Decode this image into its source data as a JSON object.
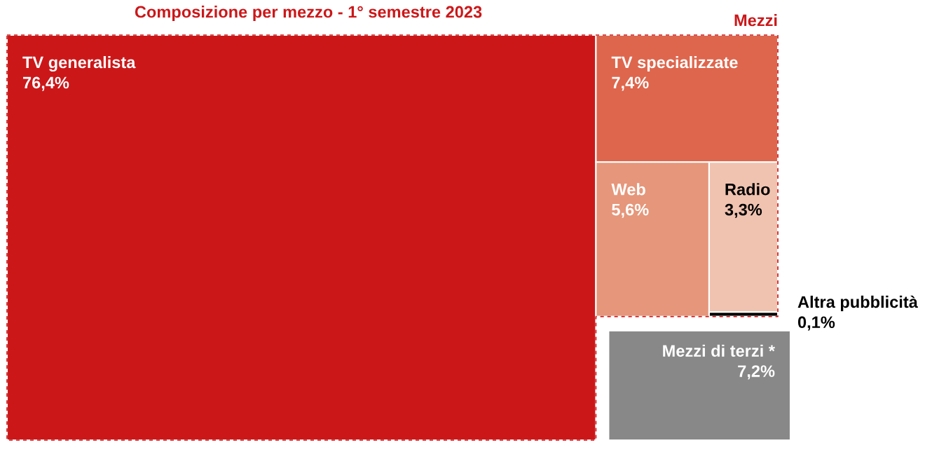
{
  "chart_data": {
    "type": "other",
    "title": "Composizione per mezzo - 1° semestre 2023",
    "categories": [
      "TV generalista",
      "TV specializzate",
      "Web",
      "Radio",
      "Altra pubblicità",
      "Mezzi di terzi *"
    ],
    "values": [
      76.4,
      7.4,
      5.6,
      3.3,
      0.1,
      7.2
    ],
    "value_labels": [
      "76,4%",
      "7,4%",
      "5,6%",
      "3,3%",
      "0,1%",
      "7,2%"
    ],
    "colors": [
      "#cc1719",
      "#de664d",
      "#e6967a",
      "#f0c3b0",
      "#000000",
      "#888888"
    ],
    "annotations": [
      "Mezzi"
    ]
  }
}
